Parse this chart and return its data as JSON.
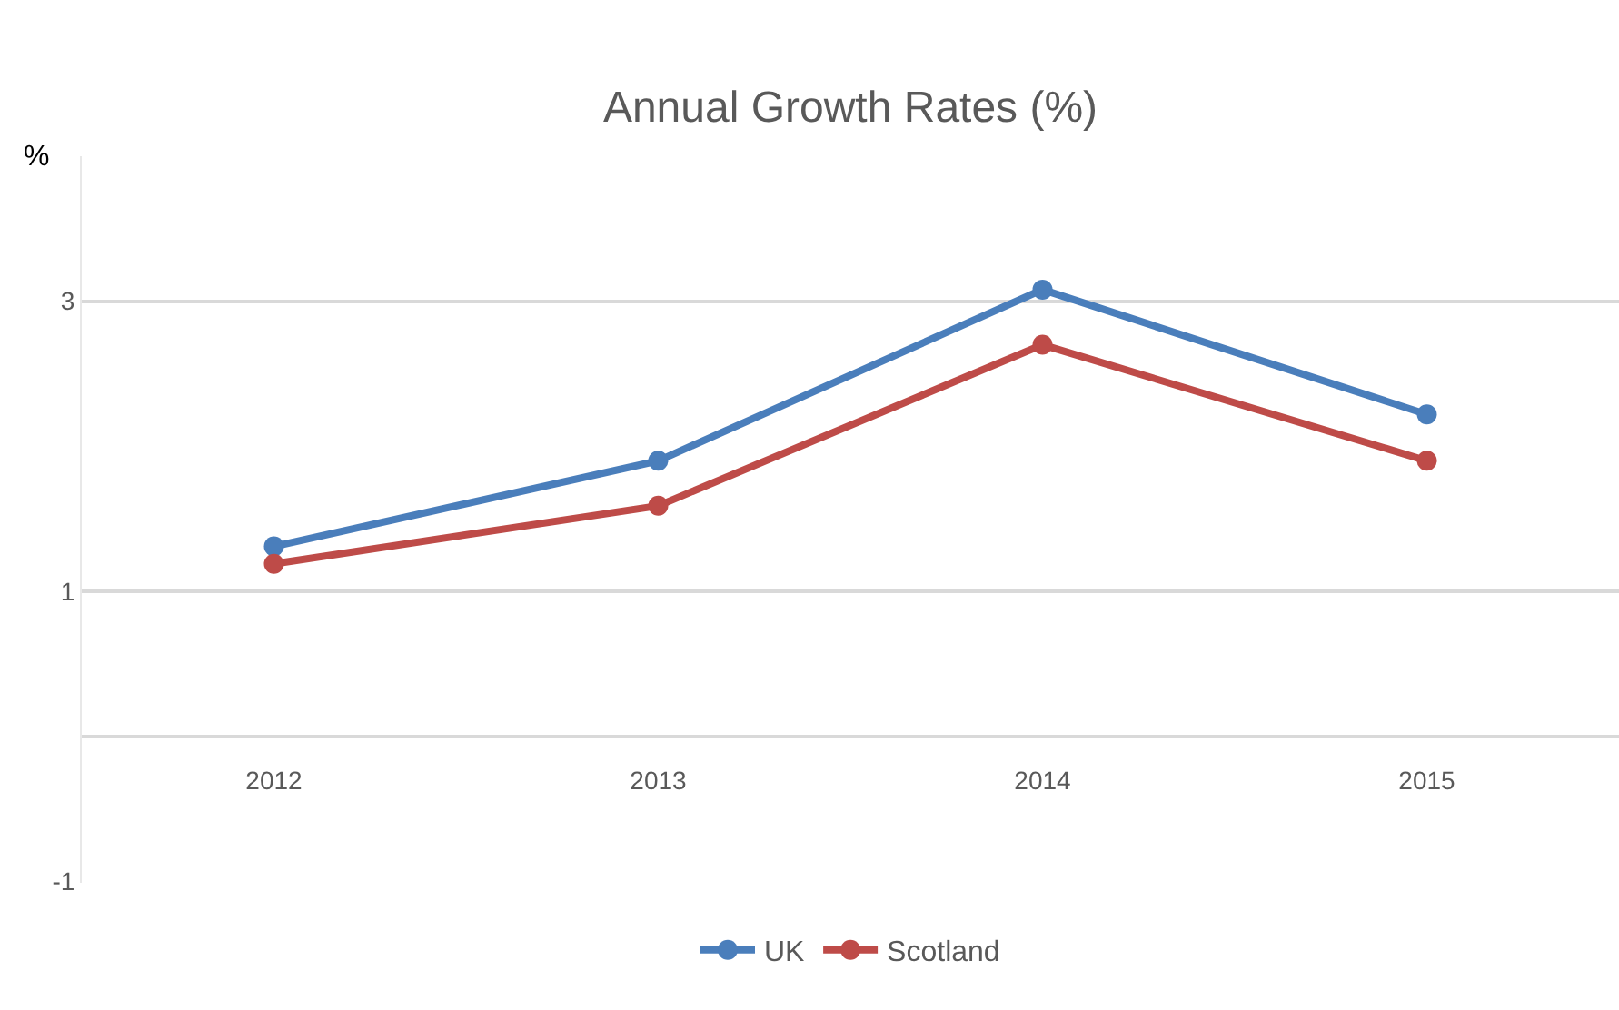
{
  "chart_data": {
    "type": "line",
    "title": "Annual Growth Rates (%)",
    "annotations": [
      "%"
    ],
    "categories": [
      "2012",
      "2013",
      "2014",
      "2015"
    ],
    "series": [
      {
        "name": "UK",
        "color": "#4a7ebb",
        "values": [
          1.31,
          1.9,
          3.08,
          2.22
        ]
      },
      {
        "name": "Scotland",
        "color": "#be4b48",
        "values": [
          1.19,
          1.59,
          2.7,
          1.9
        ]
      }
    ],
    "ylim": [
      -1.01,
      4
    ],
    "yticks": [
      -1,
      {
        "value": 0,
        "label": null
      },
      1,
      3
    ],
    "grid": "y",
    "legend": "bottom",
    "marker": "circle",
    "line_style": "solid"
  }
}
